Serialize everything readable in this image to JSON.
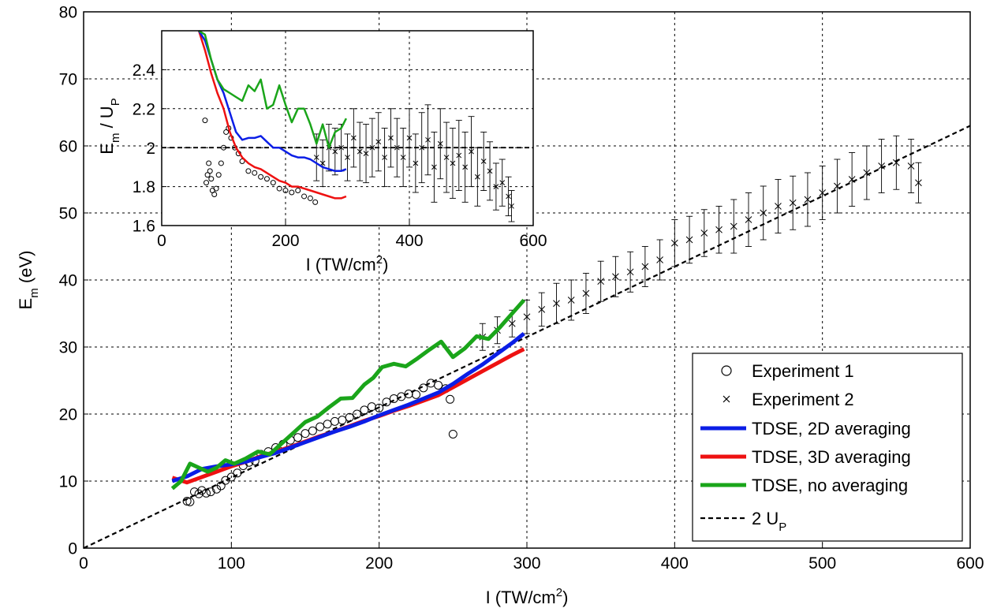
{
  "colors": {
    "blue": "#0b1ee6",
    "red": "#ee1111",
    "green": "#1aa51a",
    "black": "#000000",
    "grid": "#000000"
  },
  "chart_data": [
    {
      "id": "main",
      "type": "line",
      "xlabel": {
        "main": "I (TW/cm",
        "sup": "2",
        "tail": ")"
      },
      "ylabel": {
        "main": "E",
        "sub": "m",
        "tail": " (eV)"
      },
      "xlim": [
        0,
        600
      ],
      "ylim": [
        0,
        80
      ],
      "xticks": [
        0,
        100,
        200,
        300,
        400,
        500,
        600
      ],
      "yticks": [
        0,
        10,
        20,
        30,
        40,
        50,
        60,
        70,
        80
      ],
      "grid": true,
      "legend_position": "bottom-right",
      "legend": [
        {
          "key": "exp1",
          "label": "Experiment 1",
          "marker": "circle"
        },
        {
          "key": "exp2",
          "label": "Experiment 2",
          "marker": "x"
        },
        {
          "key": "tdse2d",
          "label": "TDSE, 2D averaging",
          "line": "blue"
        },
        {
          "key": "tdse3d",
          "label": "TDSE, 3D averaging",
          "line": "red"
        },
        {
          "key": "tdseno",
          "label": "TDSE, no averaging",
          "line": "green"
        },
        {
          "key": "twoup",
          "label_main": "2 U",
          "label_sub": "P",
          "line": "dashed"
        }
      ],
      "series": {
        "tdse2d": {
          "x": [
            60,
            70,
            80,
            90,
            100,
            110,
            120,
            130,
            140,
            150,
            160,
            170,
            180,
            190,
            200,
            210,
            220,
            230,
            240,
            250,
            260,
            270,
            280,
            290,
            298
          ],
          "y": [
            10.0,
            10.7,
            11.8,
            12.2,
            12.5,
            12.9,
            13.6,
            14.2,
            15.0,
            15.8,
            16.6,
            17.4,
            18.1,
            18.9,
            19.8,
            20.6,
            21.4,
            22.3,
            23.2,
            24.5,
            26.0,
            27.4,
            29.0,
            30.6,
            32.0
          ]
        },
        "tdse3d": {
          "x": [
            60,
            70,
            80,
            90,
            100,
            110,
            120,
            130,
            140,
            150,
            160,
            170,
            180,
            190,
            200,
            210,
            220,
            230,
            240,
            250,
            260,
            270,
            280,
            290,
            298
          ],
          "y": [
            10.5,
            9.8,
            10.6,
            11.4,
            12.2,
            12.9,
            13.7,
            14.4,
            15.1,
            15.9,
            16.7,
            17.4,
            18.2,
            19.0,
            19.7,
            20.5,
            21.2,
            22.0,
            22.8,
            24.0,
            25.2,
            26.4,
            27.6,
            28.8,
            29.7
          ]
        },
        "tdseno": {
          "x": [
            60,
            66,
            72,
            78,
            84,
            90,
            96,
            102,
            110,
            118,
            126,
            134,
            142,
            150,
            158,
            166,
            174,
            182,
            190,
            196,
            202,
            210,
            218,
            226,
            234,
            242,
            250,
            258,
            266,
            274,
            282,
            290,
            298
          ],
          "y": [
            8.9,
            10.0,
            12.6,
            12.0,
            11.4,
            12.0,
            13.1,
            12.6,
            13.4,
            14.4,
            14.0,
            15.6,
            17.2,
            18.8,
            19.6,
            21.0,
            22.3,
            22.4,
            24.4,
            25.4,
            27.0,
            27.5,
            27.1,
            28.3,
            29.6,
            30.8,
            28.5,
            29.8,
            31.6,
            31.2,
            33.0,
            35.0,
            37.0
          ]
        },
        "twoup": {
          "x": [
            0,
            600
          ],
          "y": [
            0,
            63
          ]
        },
        "exp1": {
          "x": [
            70,
            72,
            75,
            78,
            80,
            83,
            86,
            90,
            93,
            96,
            100,
            104,
            108,
            112,
            116,
            120,
            125,
            130,
            135,
            140,
            145,
            150,
            155,
            160,
            165,
            170,
            175,
            180,
            185,
            190,
            195,
            200,
            205,
            210,
            215,
            220,
            225,
            230,
            235,
            240,
            245,
            248,
            250
          ],
          "y": [
            7.0,
            6.9,
            8.4,
            8.1,
            8.6,
            8.2,
            8.4,
            8.8,
            9.3,
            10.1,
            10.6,
            11.2,
            12.3,
            12.8,
            13.0,
            14.0,
            14.4,
            15.0,
            15.5,
            16.1,
            16.5,
            17.1,
            17.5,
            18.1,
            18.5,
            18.9,
            19.1,
            19.5,
            20.0,
            20.6,
            21.1,
            20.9,
            21.8,
            22.3,
            22.6,
            23.0,
            22.9,
            23.9,
            24.6,
            24.3,
            23.8,
            22.2,
            17.0
          ]
        },
        "exp2": {
          "x": [
            270,
            280,
            290,
            300,
            310,
            320,
            330,
            340,
            350,
            360,
            370,
            380,
            390,
            400,
            410,
            420,
            430,
            440,
            450,
            460,
            470,
            480,
            490,
            500,
            510,
            520,
            530,
            540,
            550,
            560,
            565
          ],
          "y": [
            31.5,
            32.5,
            33.5,
            34.5,
            35.6,
            36.5,
            37.0,
            38.0,
            39.8,
            40.5,
            41.2,
            42.0,
            43.0,
            45.5,
            46.0,
            47.0,
            47.5,
            48.0,
            49.0,
            50.0,
            51.0,
            51.5,
            52.0,
            53.0,
            54.0,
            55.0,
            56.0,
            57.0,
            57.5,
            57.0,
            54.5
          ],
          "err": [
            2,
            2,
            2,
            2.5,
            2.5,
            3,
            3,
            3,
            3,
            3,
            3,
            3,
            3,
            3.5,
            3.5,
            3.5,
            3.5,
            4,
            4,
            4,
            4,
            4,
            4,
            4,
            4,
            4,
            4,
            4,
            4,
            4,
            3
          ]
        }
      }
    },
    {
      "id": "inset",
      "type": "line",
      "xlabel": {
        "main": "I (TW/cm",
        "sup": "2",
        "tail": ")"
      },
      "ylabel": {
        "main": "E",
        "sub": "m",
        "mid": " / U",
        "sub2": "P"
      },
      "xlim": [
        0,
        600
      ],
      "ylim": [
        1.6,
        2.6
      ],
      "xticks": [
        0,
        200,
        400,
        600
      ],
      "yticks": [
        1.6,
        1.8,
        2.0,
        2.2,
        2.4
      ],
      "ytick_labels": [
        "1.6",
        "1.8",
        "2",
        "2.2",
        "2.4"
      ],
      "grid": true,
      "series": {
        "tdse2d": {
          "x": [
            60,
            70,
            80,
            90,
            100,
            110,
            120,
            130,
            140,
            150,
            160,
            170,
            180,
            190,
            200,
            210,
            220,
            230,
            240,
            250,
            260,
            270,
            280,
            290,
            298
          ],
          "y": [
            2.6,
            2.55,
            2.45,
            2.35,
            2.28,
            2.18,
            2.08,
            2.04,
            2.05,
            2.05,
            2.06,
            2.03,
            2.0,
            2.0,
            1.98,
            1.96,
            1.95,
            1.95,
            1.94,
            1.92,
            1.9,
            1.89,
            1.88,
            1.88,
            1.89
          ]
        },
        "tdse3d": {
          "x": [
            60,
            70,
            80,
            90,
            100,
            110,
            120,
            130,
            140,
            150,
            160,
            170,
            180,
            190,
            200,
            210,
            220,
            230,
            240,
            250,
            260,
            270,
            280,
            290,
            298
          ],
          "y": [
            2.6,
            2.5,
            2.38,
            2.28,
            2.2,
            2.08,
            2.0,
            1.95,
            1.92,
            1.9,
            1.89,
            1.87,
            1.85,
            1.83,
            1.82,
            1.8,
            1.8,
            1.79,
            1.78,
            1.77,
            1.76,
            1.75,
            1.74,
            1.74,
            1.75
          ]
        },
        "tdseno": {
          "x": [
            60,
            70,
            80,
            90,
            100,
            110,
            120,
            130,
            140,
            150,
            160,
            170,
            180,
            190,
            200,
            210,
            220,
            230,
            240,
            250,
            260,
            270,
            280,
            290,
            298
          ],
          "y": [
            2.6,
            2.58,
            2.45,
            2.35,
            2.3,
            2.28,
            2.26,
            2.24,
            2.32,
            2.29,
            2.35,
            2.2,
            2.22,
            2.32,
            2.22,
            2.13,
            2.2,
            2.2,
            2.12,
            2.02,
            2.12,
            2.0,
            2.08,
            2.1,
            2.15
          ]
        },
        "exp1": {
          "x": [
            70,
            72,
            74,
            76,
            78,
            80,
            82,
            85,
            88,
            92,
            96,
            100,
            104,
            108,
            112,
            118,
            124,
            130,
            140,
            150,
            160,
            170,
            180,
            190,
            200,
            210,
            220,
            230,
            240,
            248
          ],
          "y": [
            2.14,
            1.82,
            1.86,
            1.92,
            1.88,
            1.84,
            1.78,
            1.76,
            1.79,
            1.86,
            1.92,
            2.0,
            2.08,
            2.1,
            2.05,
            2.0,
            1.97,
            1.93,
            1.88,
            1.87,
            1.85,
            1.84,
            1.82,
            1.79,
            1.78,
            1.77,
            1.78,
            1.75,
            1.74,
            1.72
          ]
        },
        "exp2": {
          "x": [
            250,
            260,
            270,
            280,
            290,
            300,
            310,
            320,
            330,
            340,
            350,
            360,
            370,
            380,
            390,
            400,
            410,
            420,
            430,
            440,
            450,
            460,
            470,
            480,
            490,
            500,
            510,
            520,
            530,
            540,
            550,
            560,
            565
          ],
          "y": [
            1.95,
            1.92,
            2.0,
            1.98,
            2.0,
            1.95,
            2.05,
            1.98,
            1.97,
            2.0,
            2.03,
            1.95,
            2.05,
            2.0,
            1.95,
            2.05,
            1.92,
            2.0,
            2.04,
            1.9,
            2.02,
            1.95,
            1.92,
            1.96,
            1.9,
            1.98,
            1.85,
            1.93,
            1.88,
            1.8,
            1.82,
            1.75,
            1.7
          ],
          "err": [
            0.12,
            0.12,
            0.12,
            0.12,
            0.12,
            0.12,
            0.15,
            0.15,
            0.15,
            0.15,
            0.15,
            0.15,
            0.15,
            0.15,
            0.15,
            0.15,
            0.15,
            0.18,
            0.18,
            0.18,
            0.18,
            0.18,
            0.18,
            0.18,
            0.18,
            0.18,
            0.15,
            0.15,
            0.15,
            0.12,
            0.12,
            0.1,
            0.08
          ]
        }
      }
    }
  ]
}
